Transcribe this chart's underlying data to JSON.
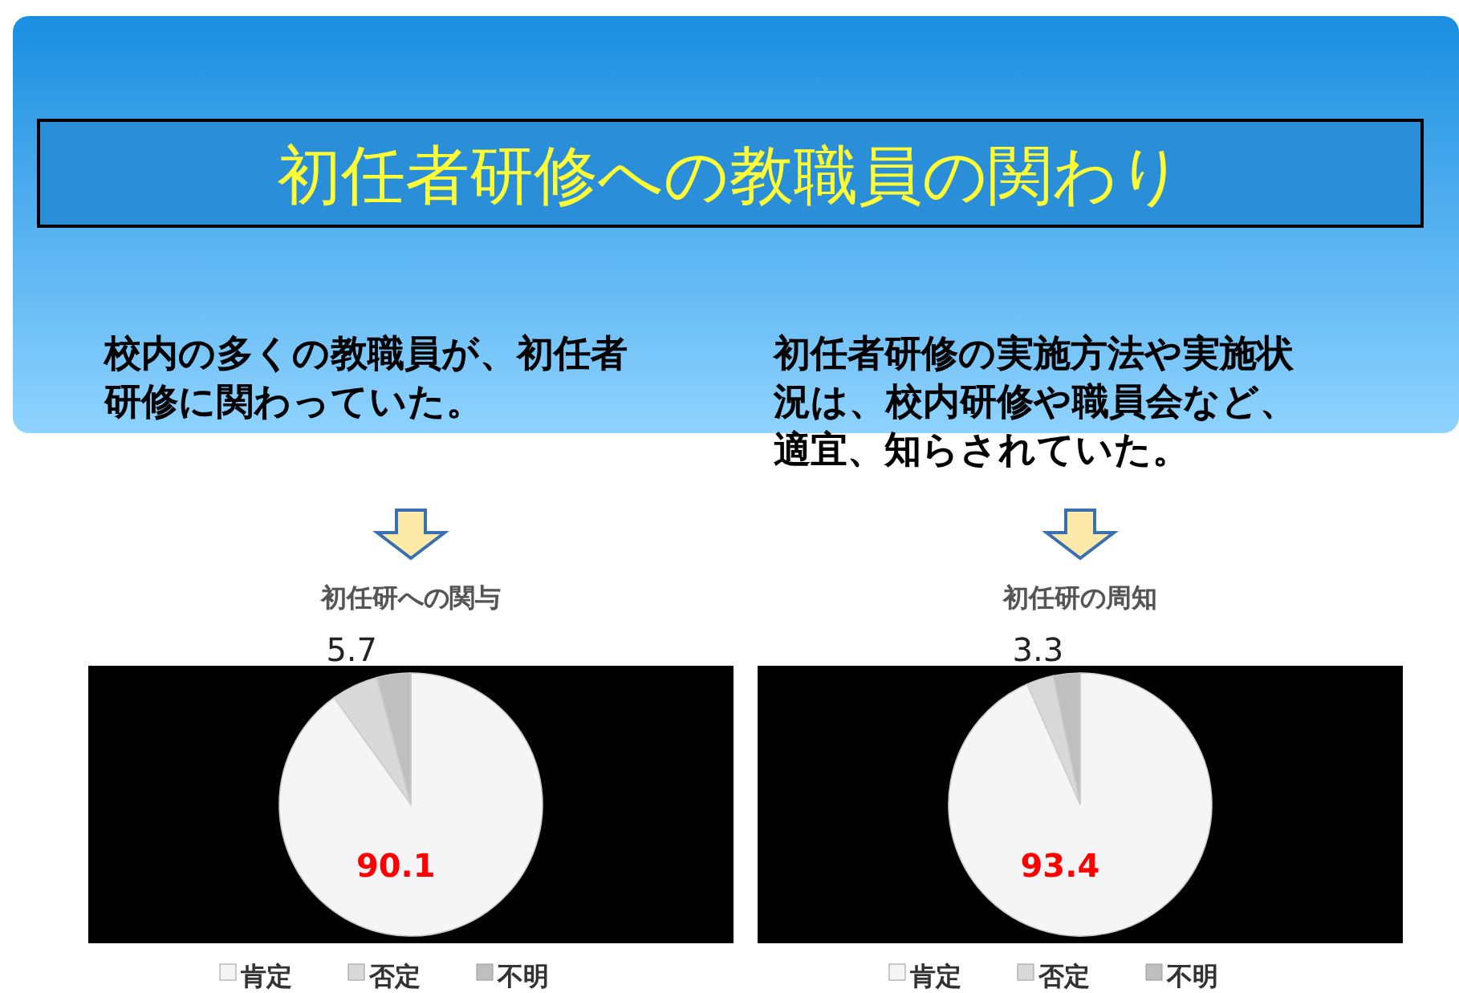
{
  "chart_data": [
    {
      "type": "other",
      "title": "初任者研修への教職員の関わり"
    },
    {
      "type": "pie",
      "title": "初任研への関与",
      "subtitle": "校内の多くの教職員が、初任者研修に関わっていた。",
      "categories": [
        "肯定",
        "否定",
        "不明"
      ],
      "values": [
        90.1,
        5.7,
        4.2
      ],
      "value_labels": [
        "90.1",
        "5.7",
        null
      ],
      "colors": [
        "#f5f5f5",
        "#d9d9d9",
        "#bfbfbf"
      ],
      "legend": "bottom"
    },
    {
      "type": "pie",
      "title": "初任研の周知",
      "subtitle": "初任者研修の実施方法や実施状況は、校内研修や職員会など、適宜、知らされていた。",
      "categories": [
        "肯定",
        "否定",
        "不明"
      ],
      "values": [
        93.4,
        3.3,
        3.3
      ],
      "value_labels": [
        "93.4",
        "3.3",
        null
      ],
      "colors": [
        "#f5f5f5",
        "#d9d9d9",
        "#bfbfbf"
      ],
      "legend": "bottom"
    }
  ]
}
